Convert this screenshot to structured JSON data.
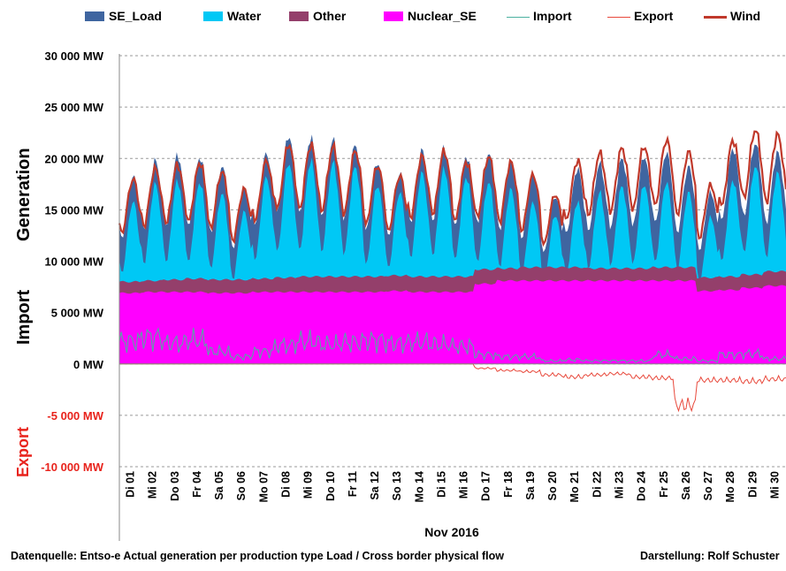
{
  "legend": [
    {
      "name": "SE_Load",
      "color": "#3f65a0",
      "kind": "area"
    },
    {
      "name": "Water",
      "color": "#00c8f5",
      "kind": "area"
    },
    {
      "name": "Other",
      "color": "#943f6b",
      "kind": "area"
    },
    {
      "name": "Nuclear_SE",
      "color": "#ff00ff",
      "kind": "area"
    },
    {
      "name": "Import",
      "color": "#4bb0a0",
      "kind": "line"
    },
    {
      "name": "Export",
      "color": "#e8493c",
      "kind": "line"
    },
    {
      "name": "Wind",
      "color": "#c0392b",
      "kind": "line"
    }
  ],
  "side_labels": {
    "generation": "Generation",
    "import": "Import",
    "export": "Export"
  },
  "footer": {
    "source": "Datenquelle: Entso-e  Actual generation per production type    Load   / Cross border physical flow",
    "credit": "Darstellung: Rolf Schuster"
  },
  "chart_data": {
    "type": "area",
    "xlabel": "Nov 2016",
    "ylim": [
      -10000,
      30000
    ],
    "ytick_values": [
      30000,
      25000,
      20000,
      15000,
      10000,
      5000,
      0,
      -5000,
      -10000
    ],
    "ytick_labels": [
      "30 000 MW",
      "25 000 MW",
      "20 000 MW",
      "15 000 MW",
      "10 000 MW",
      "5 000 MW",
      "0 MW",
      "-5 000 MW",
      "-10 000 MW"
    ],
    "categories": [
      "Di 01",
      "Mi 02",
      "Do 03",
      "Fr 04",
      "Sa 05",
      "So 06",
      "Mo 07",
      "Di 08",
      "Mi 09",
      "Do 10",
      "Fr 11",
      "Sa 12",
      "So 13",
      "Mo 14",
      "Di 15",
      "Mi 16",
      "Do 17",
      "Fr 18",
      "Sa 19",
      "So 20",
      "Mo 21",
      "Di 22",
      "Mi 23",
      "Do 24",
      "Fr 25",
      "Sa 26",
      "So 27",
      "Mo 28",
      "Di 29",
      "Mi 30"
    ],
    "grid": "horizontal dashed",
    "legend_position": "top",
    "series": [
      {
        "name": "SE_Load",
        "daily_peak": [
          18300,
          19800,
          20300,
          20100,
          19200,
          17000,
          20500,
          22200,
          22000,
          21800,
          21300,
          19600,
          18600,
          20800,
          21000,
          20200,
          20500,
          19700,
          18400,
          16300,
          19000,
          19500,
          20000,
          20200,
          20600,
          19200,
          16700,
          21000,
          21500,
          20600
        ]
      },
      {
        "name": "Water",
        "daily_peak": [
          15800,
          17500,
          17800,
          17700,
          16600,
          14800,
          18200,
          19600,
          19800,
          19600,
          19200,
          17400,
          16700,
          18600,
          19000,
          18200,
          17700,
          17000,
          15700,
          14500,
          15800,
          16700,
          17300,
          17500,
          17700,
          16700,
          14300,
          17900,
          19300,
          18600
        ]
      },
      {
        "name": "Other",
        "daily_value": [
          8000,
          8100,
          8200,
          8300,
          8200,
          8200,
          8300,
          8400,
          8500,
          8500,
          8500,
          8500,
          8600,
          8500,
          8500,
          8500,
          9200,
          9300,
          9400,
          9400,
          9400,
          9300,
          9300,
          9300,
          9400,
          9400,
          8400,
          8500,
          8700,
          9000
        ]
      },
      {
        "name": "Nuclear_SE",
        "daily_value": [
          6900,
          7000,
          7000,
          7000,
          6900,
          6900,
          7000,
          7000,
          7000,
          7000,
          7000,
          7000,
          7100,
          7000,
          7000,
          7000,
          7800,
          8100,
          8100,
          8100,
          8100,
          8100,
          8100,
          8100,
          8100,
          8100,
          7100,
          7200,
          7400,
          7600
        ]
      },
      {
        "name": "Wind",
        "daily_peak": [
          18000,
          19000,
          19400,
          19600,
          18700,
          17000,
          19800,
          21400,
          21300,
          21100,
          20700,
          19300,
          18300,
          20200,
          20700,
          19700,
          20200,
          19600,
          18400,
          16500,
          19800,
          20500,
          21000,
          21200,
          21800,
          20600,
          17400,
          21800,
          22800,
          22300
        ]
      },
      {
        "name": "Import",
        "daily_value": [
          2200,
          2600,
          2000,
          2300,
          1200,
          700,
          1200,
          1800,
          2200,
          1900,
          2100,
          2300,
          2000,
          2100,
          1900,
          1700,
          900,
          700,
          700,
          300,
          400,
          300,
          300,
          300,
          900,
          500,
          300,
          900,
          1000,
          500
        ]
      },
      {
        "name": "Export",
        "daily_value": [
          0,
          0,
          0,
          0,
          0,
          0,
          0,
          0,
          0,
          0,
          0,
          0,
          0,
          0,
          0,
          0,
          -400,
          -600,
          -700,
          -1000,
          -1200,
          -1000,
          -900,
          -1200,
          -1300,
          -3800,
          -1500,
          -1500,
          -1600,
          -1400
        ]
      }
    ]
  }
}
